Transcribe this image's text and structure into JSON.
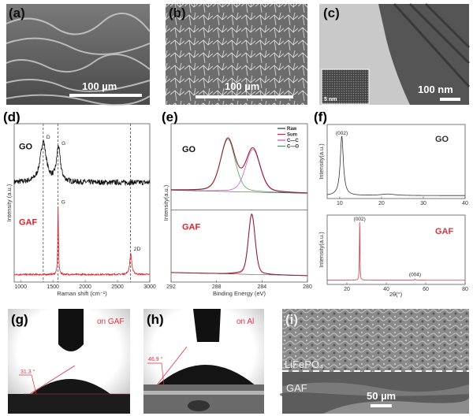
{
  "panel_labels": {
    "a": "(a)",
    "b": "(b)",
    "c": "(c)",
    "d": "(d)",
    "e": "(e)",
    "f": "(f)",
    "g": "(g)",
    "h": "(h)",
    "i": "(i)"
  },
  "images": {
    "a": {
      "scale_bar": "100 µm"
    },
    "b": {
      "scale_bar": "100 µm"
    },
    "c": {
      "scale_bar": "100 nm",
      "inset_scale_bar": "5 nm"
    },
    "g": {
      "label": "on GAF",
      "contact_angle": "31.3 °",
      "label_color": "#e0303c"
    },
    "h": {
      "label": "on Al",
      "contact_angle": "46.9 °",
      "label_color": "#e0303c"
    },
    "i": {
      "upper_layer": "LiFePO₄",
      "lower_layer": "GAF",
      "scale_bar": "50 µm"
    }
  },
  "chart_data": [
    {
      "panel": "d",
      "type": "line",
      "title": "",
      "xlabel": "Raman shift (cm⁻¹)",
      "ylabel": "Intensity (a.u.)",
      "xlim": [
        900,
        3000
      ],
      "xticks": [
        1000,
        1500,
        2000,
        2500,
        3000
      ],
      "reference_lines": [
        1350,
        1580,
        2700
      ],
      "series": [
        {
          "name": "GO",
          "color": "#111111",
          "offset": 0.61,
          "noise": 0.018,
          "peaks": [
            {
              "center": 1350,
              "height": 0.27,
              "hwhm": 55,
              "label": "D"
            },
            {
              "center": 1585,
              "height": 0.23,
              "hwhm": 35,
              "label": "G"
            }
          ]
        },
        {
          "name": "GAF",
          "color": "#e0202a",
          "offset": 0.0,
          "noise": 0.005,
          "peaks": [
            {
              "center": 1580,
              "height": 0.45,
              "hwhm": 7,
              "label": "G"
            },
            {
              "center": 2705,
              "height": 0.14,
              "hwhm": 18,
              "label": "2D"
            }
          ]
        }
      ]
    },
    {
      "panel": "e",
      "type": "line",
      "xlabel": "Binding Energy (eV)",
      "ylabel": "Intensity(a.u.)",
      "xlim": [
        292,
        280
      ],
      "xticks": [
        292,
        288,
        284,
        280
      ],
      "legend": [
        {
          "name": "Raw",
          "color": "#333333"
        },
        {
          "name": "Sum",
          "color": "#e0203a"
        },
        {
          "name": "C—C",
          "color": "#d040d0"
        },
        {
          "name": "C—O",
          "color": "#3a9a4a"
        }
      ],
      "subplots": [
        {
          "name": "GO",
          "color": "#111111",
          "offset": 0.56,
          "components": [
            {
              "type": "C—O",
              "center": 287.0,
              "height": 0.33,
              "hwhm": 0.75
            },
            {
              "type": "C—C",
              "center": 284.8,
              "height": 0.27,
              "hwhm": 0.75
            }
          ]
        },
        {
          "name": "GAF",
          "color": "#e0202a",
          "offset": 0.04,
          "components": [
            {
              "type": "C—C",
              "center": 284.9,
              "height": 0.38,
              "hwhm": 0.35
            }
          ]
        }
      ]
    },
    {
      "panel": "f",
      "type": "line",
      "ylabel": "Intensity(a.u.)",
      "xlabel": "2θ(°)",
      "subplots": [
        {
          "name": "GO",
          "color": "#333333",
          "xlim": [
            7,
            40
          ],
          "xticks": [
            10,
            20,
            30,
            40
          ],
          "peaks": [
            {
              "center": 10.5,
              "height": 0.8,
              "hwhm": 0.45,
              "label": "(002)"
            },
            {
              "center": 21.5,
              "height": 0.02,
              "hwhm": 2,
              "label": ""
            }
          ],
          "baseline": 0.04
        },
        {
          "name": "GAF",
          "color": "#e0303c",
          "xlim": [
            10,
            80
          ],
          "xticks": [
            20,
            40,
            60,
            80
          ],
          "peaks": [
            {
              "center": 26.5,
              "height": 0.84,
              "hwhm": 0.15,
              "label": "(002)"
            },
            {
              "center": 54.6,
              "height": 0.015,
              "hwhm": 0.3,
              "label": "(004)"
            }
          ],
          "baseline": 0.06
        }
      ]
    }
  ]
}
